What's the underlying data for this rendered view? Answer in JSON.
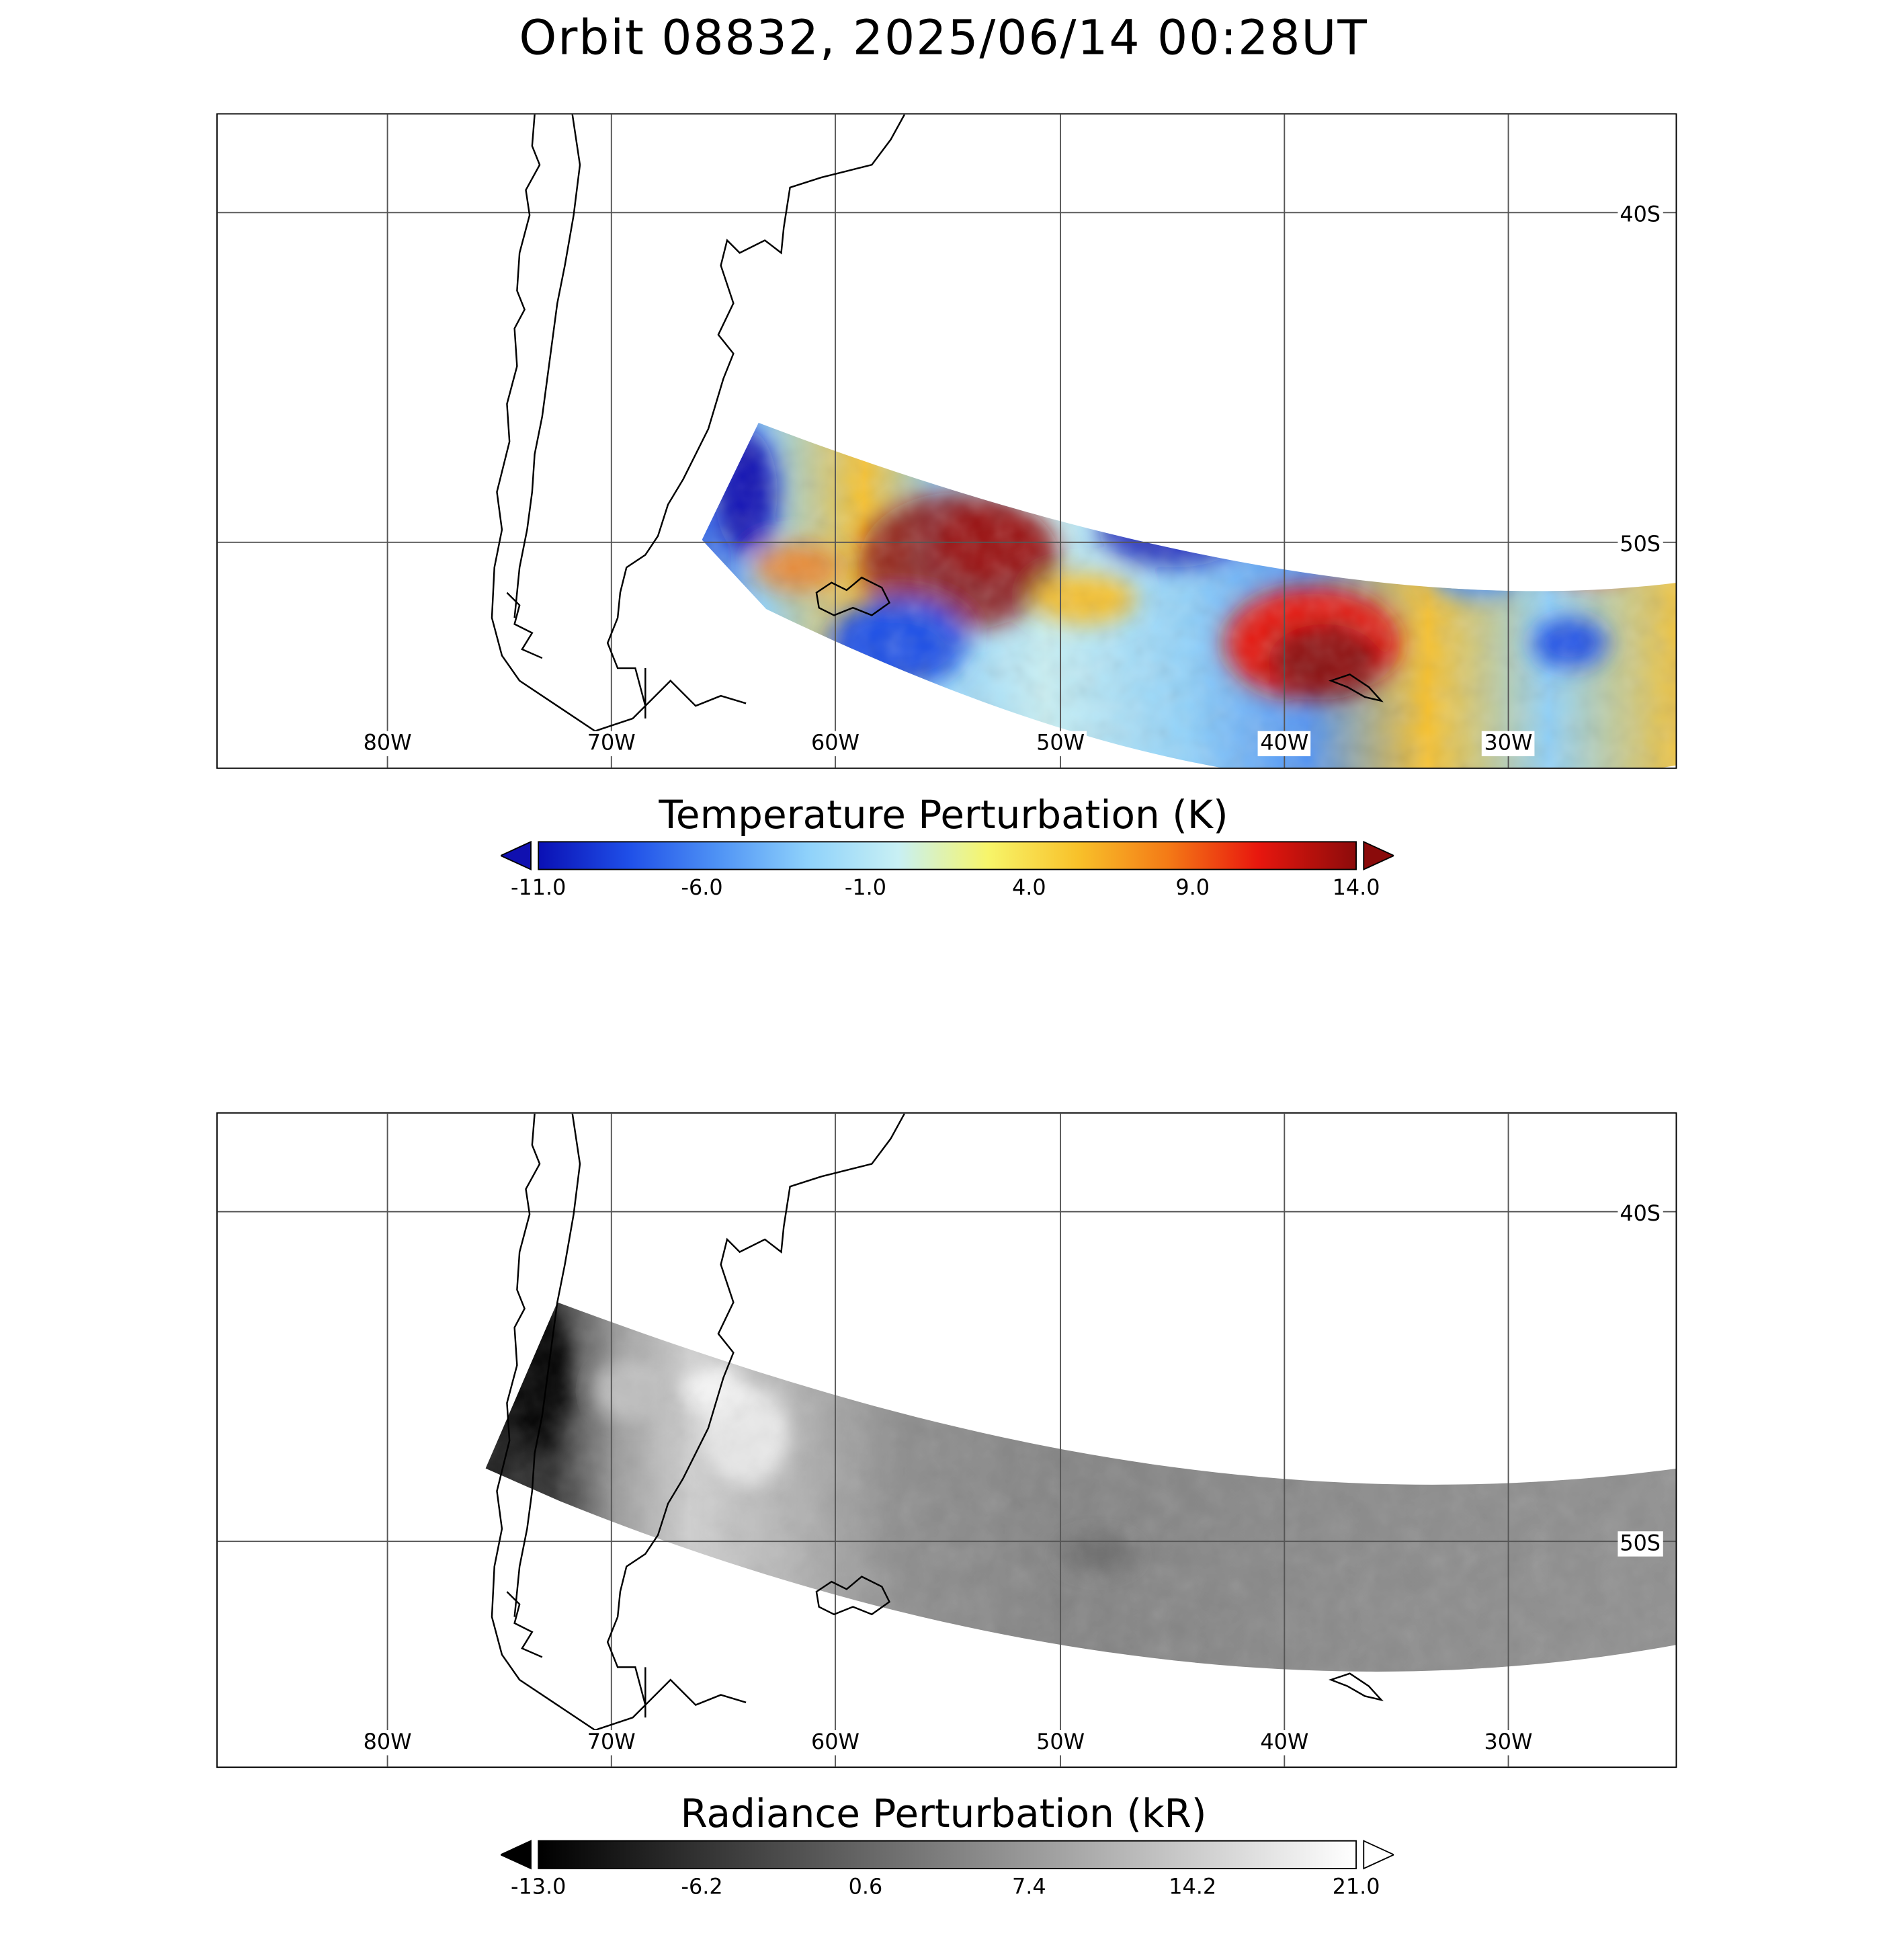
{
  "title": "Orbit 08832, 2025/06/14 00:28UT",
  "map": {
    "lon_labels": [
      "80W",
      "70W",
      "60W",
      "50W",
      "40W",
      "30W"
    ],
    "lat_labels": [
      "40S",
      "50S"
    ]
  },
  "temperature": {
    "colorbar_title": "Temperature Perturbation (K)",
    "ticks": [
      "-11.0",
      "-6.0",
      "-1.0",
      "4.0",
      "9.0",
      "14.0"
    ],
    "range": [
      -11,
      14
    ],
    "colors": [
      "#0a10b4",
      "#1f4fe8",
      "#4f93f5",
      "#8fd2fb",
      "#c8f0f4",
      "#f7f56a",
      "#f8c12a",
      "#f47a16",
      "#e8170e",
      "#8c0b0b"
    ],
    "extend_low_color": "#1010b0",
    "extend_high_color": "#8a0b0b"
  },
  "radiance": {
    "colorbar_title": "Radiance Perturbation (kR)",
    "ticks": [
      "-13.0",
      "-6.2",
      "0.6",
      "7.4",
      "14.2",
      "21.0"
    ],
    "range": [
      -13,
      21
    ],
    "colors": [
      "#000000",
      "#ffffff"
    ],
    "extend_low_color": "#000000",
    "extend_high_color": "#ffffff"
  }
}
